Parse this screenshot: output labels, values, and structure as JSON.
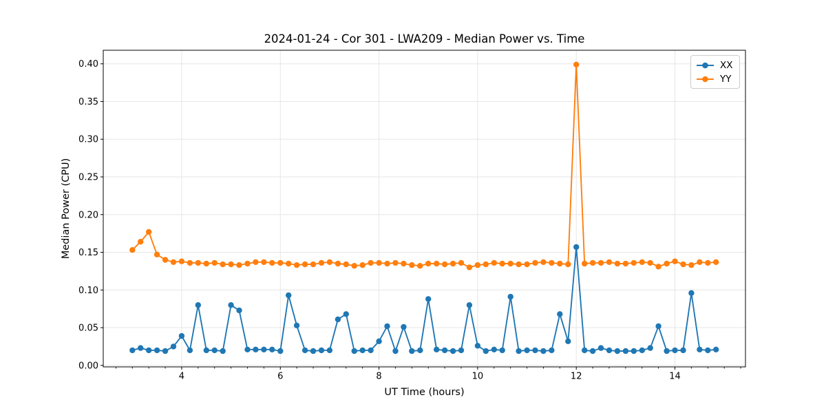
{
  "chart_data": {
    "type": "line",
    "title": "2024-01-24 - Cor 301 - LWA209 - Median Power vs. Time",
    "xlabel": "UT Time (hours)",
    "ylabel": "Median Power (CPU)",
    "xlim": [
      2.41,
      15.43
    ],
    "ylim": [
      -0.002,
      0.418
    ],
    "x_major_ticks": [
      4,
      6,
      8,
      10,
      12,
      14
    ],
    "x_minor_tick_step": 0.3333,
    "y_major_ticks": [
      0.0,
      0.05,
      0.1,
      0.15,
      0.2,
      0.25,
      0.3,
      0.35,
      0.4
    ],
    "y_tick_labels": [
      "0.00",
      "0.05",
      "0.10",
      "0.15",
      "0.20",
      "0.25",
      "0.30",
      "0.35",
      "0.40"
    ],
    "grid": true,
    "grid_color": "#e6e6e6",
    "legend_position": "upper right",
    "x_start": 3.0,
    "x_step": 0.1666667,
    "series": [
      {
        "name": "XX",
        "color": "#1f77b4",
        "values": [
          0.02,
          0.023,
          0.02,
          0.02,
          0.019,
          0.025,
          0.039,
          0.02,
          0.08,
          0.02,
          0.02,
          0.019,
          0.08,
          0.073,
          0.021,
          0.021,
          0.021,
          0.021,
          0.019,
          0.093,
          0.053,
          0.02,
          0.019,
          0.02,
          0.02,
          0.061,
          0.068,
          0.019,
          0.02,
          0.02,
          0.032,
          0.052,
          0.019,
          0.051,
          0.019,
          0.02,
          0.088,
          0.021,
          0.02,
          0.019,
          0.02,
          0.08,
          0.026,
          0.019,
          0.021,
          0.02,
          0.091,
          0.019,
          0.02,
          0.02,
          0.019,
          0.02,
          0.068,
          0.032,
          0.157,
          0.02,
          0.019,
          0.023,
          0.02,
          0.019,
          0.019,
          0.019,
          0.02,
          0.023,
          0.052,
          0.019,
          0.02,
          0.02,
          0.096,
          0.021,
          0.02,
          0.021
        ]
      },
      {
        "name": "YY",
        "color": "#ff7f0e",
        "values": [
          0.153,
          0.164,
          0.177,
          0.147,
          0.14,
          0.137,
          0.138,
          0.136,
          0.136,
          0.135,
          0.136,
          0.134,
          0.134,
          0.133,
          0.135,
          0.137,
          0.137,
          0.136,
          0.136,
          0.135,
          0.133,
          0.134,
          0.134,
          0.136,
          0.137,
          0.135,
          0.134,
          0.132,
          0.133,
          0.136,
          0.136,
          0.135,
          0.136,
          0.135,
          0.133,
          0.132,
          0.135,
          0.135,
          0.134,
          0.135,
          0.136,
          0.13,
          0.133,
          0.134,
          0.136,
          0.135,
          0.135,
          0.134,
          0.134,
          0.136,
          0.137,
          0.136,
          0.135,
          0.134,
          0.399,
          0.135,
          0.136,
          0.136,
          0.137,
          0.135,
          0.135,
          0.136,
          0.137,
          0.136,
          0.131,
          0.135,
          0.138,
          0.134,
          0.133,
          0.137,
          0.136,
          0.137
        ]
      }
    ]
  }
}
